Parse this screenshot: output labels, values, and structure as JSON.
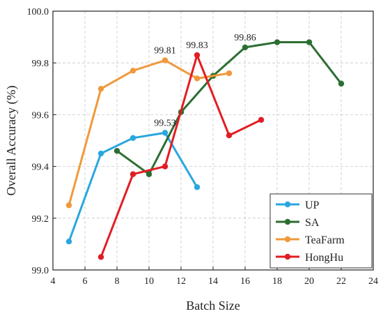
{
  "chart_data": {
    "type": "line",
    "title": "",
    "xlabel": "Batch Size",
    "ylabel": "Overall Accuracy (%)",
    "xlim": [
      4,
      24
    ],
    "ylim": [
      99.0,
      100.0
    ],
    "x_ticks": [
      "4",
      "6",
      "8",
      "10",
      "12",
      "14",
      "16",
      "18",
      "20",
      "22",
      "24"
    ],
    "y_ticks": [
      "99.0",
      "99.2",
      "99.4",
      "99.6",
      "99.8",
      "100.0"
    ],
    "grid": true,
    "legend_position": "bottom-right",
    "series": [
      {
        "name": "UP",
        "color": "#29a7df",
        "x": [
          5,
          7,
          9,
          11,
          13
        ],
        "y": [
          99.11,
          99.45,
          99.51,
          99.53,
          99.32
        ]
      },
      {
        "name": "SA",
        "color": "#2c6e31",
        "x": [
          8,
          10,
          12,
          14,
          16,
          18,
          20,
          22
        ],
        "y": [
          99.46,
          99.37,
          99.61,
          99.75,
          99.86,
          99.88,
          99.88,
          99.72
        ]
      },
      {
        "name": "TeaFarm",
        "color": "#f0993b",
        "x": [
          5,
          7,
          9,
          11,
          13,
          15
        ],
        "y": [
          99.25,
          99.7,
          99.77,
          99.81,
          99.74,
          99.76
        ]
      },
      {
        "name": "HongHu",
        "color": "#e31c23",
        "x": [
          7,
          9,
          11,
          13,
          15,
          17
        ],
        "y": [
          99.05,
          99.37,
          99.4,
          99.83,
          99.52,
          99.58
        ]
      }
    ],
    "annotations": [
      {
        "text": "99.53",
        "x": 11,
        "y": 99.53
      },
      {
        "text": "99.81",
        "x": 11,
        "y": 99.81
      },
      {
        "text": "99.83",
        "x": 13,
        "y": 99.83
      },
      {
        "text": "99.86",
        "x": 16,
        "y": 99.86
      }
    ]
  }
}
